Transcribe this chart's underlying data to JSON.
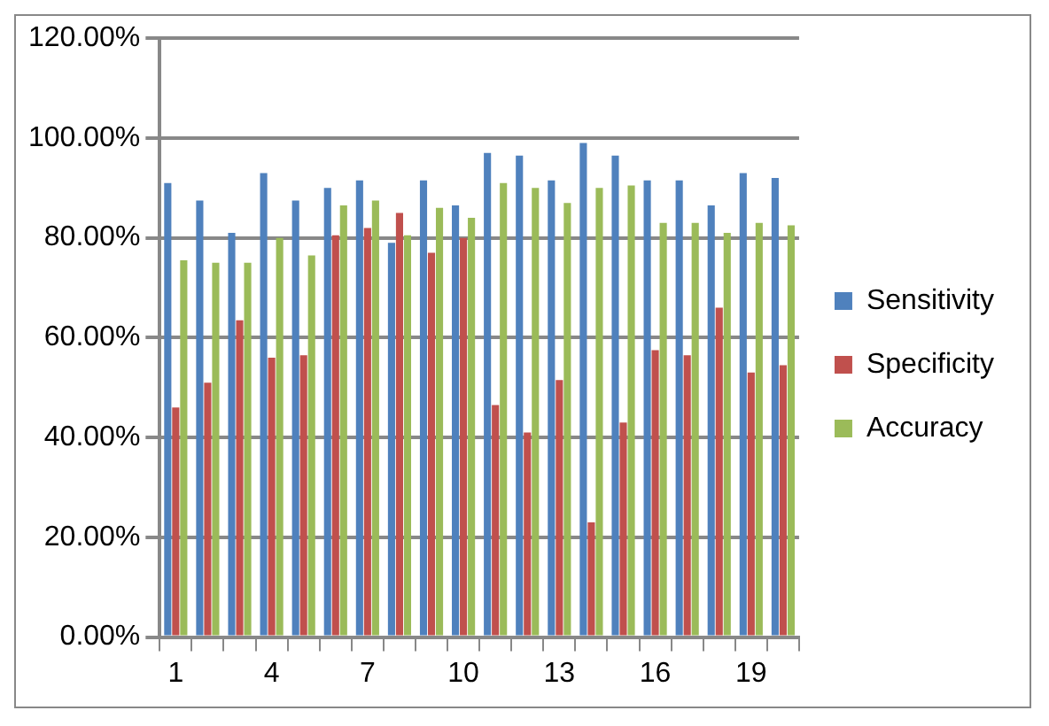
{
  "chart_data": {
    "type": "bar",
    "categories": [
      "1",
      null,
      null,
      "4",
      null,
      null,
      "7",
      null,
      null,
      "10",
      null,
      null,
      "13",
      null,
      null,
      "16",
      null,
      null,
      "19",
      null
    ],
    "series": [
      {
        "name": "Sensitivity",
        "color": "#4f81bd",
        "values": [
          91,
          87.5,
          81,
          93,
          87.5,
          90,
          91.5,
          79,
          91.5,
          86.5,
          97,
          96.5,
          91.5,
          99,
          96.5,
          91.5,
          91.5,
          86.5,
          93,
          92
        ]
      },
      {
        "name": "Specificity",
        "color": "#c0504d",
        "values": [
          46,
          51,
          63.5,
          56,
          56.5,
          80.5,
          82,
          85,
          77,
          80,
          46.5,
          41,
          51.5,
          23,
          43,
          57.5,
          56.5,
          66,
          53,
          54.5
        ]
      },
      {
        "name": "Accuracy",
        "color": "#9bbb59",
        "values": [
          75.5,
          75,
          75,
          80,
          76.5,
          86.5,
          87.5,
          80.5,
          86,
          84,
          91,
          90,
          87,
          90,
          90.5,
          83,
          83,
          81,
          83,
          82.5
        ]
      }
    ],
    "ylim": [
      0,
      120
    ],
    "yticks": [
      {
        "value": 0,
        "label": "0.00%"
      },
      {
        "value": 20,
        "label": "20.00%"
      },
      {
        "value": 40,
        "label": "40.00%"
      },
      {
        "value": 60,
        "label": "60.00%"
      },
      {
        "value": 80,
        "label": "80.00%"
      },
      {
        "value": 100,
        "label": "100.00%"
      },
      {
        "value": 120,
        "label": "120.00%"
      }
    ],
    "grid": "y",
    "legend": "right"
  }
}
